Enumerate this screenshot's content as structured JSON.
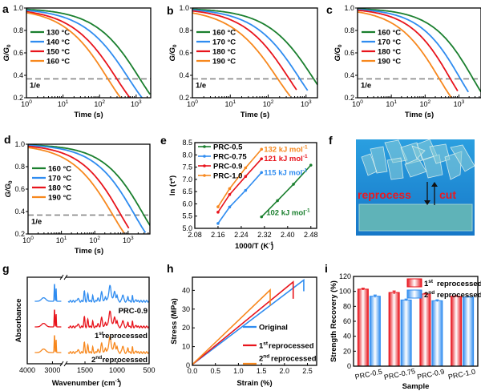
{
  "panels": {
    "a": {
      "label": "a"
    },
    "b": {
      "label": "b"
    },
    "c": {
      "label": "c"
    },
    "d": {
      "label": "d"
    },
    "e": {
      "label": "e"
    },
    "f": {
      "label": "f"
    },
    "g": {
      "label": "g"
    },
    "h": {
      "label": "h"
    },
    "i": {
      "label": "i"
    }
  },
  "colors": {
    "green": "#1a7f2e",
    "blue": "#2f8cf0",
    "red": "#e8141c",
    "orange": "#f7881e",
    "gray": "#888888"
  },
  "photo_f": {
    "reprocess": "reprocess",
    "cut": "cut"
  },
  "chart_data": [
    {
      "id": "a",
      "type": "line",
      "title": "",
      "xlabel": "Time (s)",
      "ylabel": "G/G0",
      "xscale": "log",
      "xlim": [
        1,
        2500
      ],
      "ylim": [
        0.2,
        1.0
      ],
      "xticks": [
        "10^0",
        "10^1",
        "10^2",
        "10^3"
      ],
      "yticks": [
        "0.2",
        "0.4",
        "0.6",
        "0.8",
        "1.0"
      ],
      "reference_line": {
        "y": 0.368,
        "label": "1/e"
      },
      "series": [
        {
          "name": "130 °C",
          "color": "green",
          "tau": 1200,
          "beta": 0.62,
          "xend": 2400
        },
        {
          "name": "140 °C",
          "color": "blue",
          "tau": 600,
          "beta": 0.6,
          "xend": 1900
        },
        {
          "name": "150 °C",
          "color": "red",
          "tau": 280,
          "beta": 0.6,
          "xend": 1100
        },
        {
          "name": "160 °C",
          "color": "orange",
          "tau": 160,
          "beta": 0.62,
          "xend": 520
        }
      ]
    },
    {
      "id": "b",
      "type": "line",
      "title": "",
      "xlabel": "Time (s)",
      "ylabel": "G/G0",
      "xscale": "log",
      "xlim": [
        1,
        2000
      ],
      "ylim": [
        0.2,
        1.0
      ],
      "xticks": [
        "10^0",
        "10^1",
        "10^2",
        "10^3"
      ],
      "yticks": [
        "0.2",
        "0.4",
        "0.6",
        "0.8",
        "1.0"
      ],
      "reference_line": {
        "y": 0.368,
        "label": "1/e"
      },
      "series": [
        {
          "name": "160 °C",
          "color": "green",
          "tau": 1500,
          "beta": 0.62,
          "xend": 2000
        },
        {
          "name": "170 °C",
          "color": "blue",
          "tau": 650,
          "beta": 0.62,
          "xend": 1100
        },
        {
          "name": "180 °C",
          "color": "red",
          "tau": 340,
          "beta": 0.62,
          "xend": 560
        },
        {
          "name": "190 °C",
          "color": "orange",
          "tau": 170,
          "beta": 0.6,
          "xend": 380
        }
      ]
    },
    {
      "id": "c",
      "type": "line",
      "title": "",
      "xlabel": "Time (s)",
      "ylabel": "G/G0",
      "xscale": "log",
      "xlim": [
        1,
        4500
      ],
      "ylim": [
        0.2,
        1.0
      ],
      "xticks": [
        "10^0",
        "10^1",
        "10^2",
        "10^3"
      ],
      "yticks": [
        "0.2",
        "0.4",
        "0.6",
        "0.8",
        "1.0"
      ],
      "reference_line": {
        "y": 0.368,
        "label": "1/e"
      },
      "series": [
        {
          "name": "160 °C",
          "color": "green",
          "tau": 2500,
          "beta": 0.62,
          "xend": 4500
        },
        {
          "name": "170 °C",
          "color": "blue",
          "tau": 1050,
          "beta": 0.62,
          "xend": 1900
        },
        {
          "name": "180 °C",
          "color": "red",
          "tau": 530,
          "beta": 0.62,
          "xend": 920
        },
        {
          "name": "190 °C",
          "color": "orange",
          "tau": 250,
          "beta": 0.6,
          "xend": 600
        }
      ]
    },
    {
      "id": "d",
      "type": "line",
      "title": "",
      "xlabel": "Time (s)",
      "ylabel": "G/G0",
      "xscale": "log",
      "xlim": [
        1,
        4500
      ],
      "ylim": [
        0.2,
        1.0
      ],
      "xticks": [
        "10^0",
        "10^1",
        "10^2",
        "10^3"
      ],
      "yticks": [
        "0.2",
        "0.4",
        "0.6",
        "0.8",
        "1.0"
      ],
      "reference_line": {
        "y": 0.368,
        "label": "1/e"
      },
      "series": [
        {
          "name": "160 °C",
          "color": "green",
          "tau": 2800,
          "beta": 0.62,
          "xend": 4500
        },
        {
          "name": "170 °C",
          "color": "blue",
          "tau": 1500,
          "beta": 0.62,
          "xend": 3300
        },
        {
          "name": "180 °C",
          "color": "red",
          "tau": 580,
          "beta": 0.62,
          "xend": 1050
        },
        {
          "name": "190 °C",
          "color": "orange",
          "tau": 330,
          "beta": 0.6,
          "xend": 750
        }
      ]
    },
    {
      "id": "e",
      "type": "scatter",
      "title": "",
      "xlabel": "1000/T (K-1)",
      "ylabel": "ln (τ*)",
      "xlim": [
        2.08,
        2.5
      ],
      "ylim": [
        5.0,
        8.5
      ],
      "xticks": [
        "2.08",
        "2.16",
        "2.24",
        "2.32",
        "2.40",
        "2.48"
      ],
      "yticks": [
        "5.0",
        "5.5",
        "6.0",
        "6.5",
        "7.0",
        "7.5",
        "8.0",
        "8.5"
      ],
      "series": [
        {
          "name": "PRC-0.5",
          "color": "green",
          "annotation": "102 kJ mol-1",
          "x": [
            2.31,
            2.365,
            2.42,
            2.48
          ],
          "y": [
            5.47,
            6.13,
            6.8,
            7.58
          ]
        },
        {
          "name": "PRC-0.75",
          "color": "blue",
          "annotation": "115 kJ mol-1",
          "x": [
            2.16,
            2.2,
            2.255,
            2.31
          ],
          "y": [
            5.2,
            5.87,
            6.55,
            7.28
          ]
        },
        {
          "name": "PRC-0.9",
          "color": "red",
          "annotation": "121 kJ mol-1",
          "x": [
            2.16,
            2.2,
            2.255,
            2.31
          ],
          "y": [
            5.66,
            6.38,
            7.12,
            7.84
          ]
        },
        {
          "name": "PRC-1.0",
          "color": "orange",
          "annotation": "132 kJ mol-1",
          "x": [
            2.16,
            2.2,
            2.255,
            2.31
          ],
          "y": [
            5.88,
            6.62,
            7.47,
            8.23
          ]
        }
      ]
    },
    {
      "id": "g",
      "type": "line",
      "title": "",
      "xlabel": "Wavenumber (cm-1)",
      "ylabel": "Absorbance",
      "xticks": [
        "4000",
        "3000",
        "1500",
        "1000",
        "500"
      ],
      "series": [
        {
          "name": "PRC-0.9",
          "color": "blue"
        },
        {
          "name": "1st reprocessed",
          "color": "red"
        },
        {
          "name": "2nd reprocessed",
          "color": "orange"
        }
      ]
    },
    {
      "id": "h",
      "type": "line",
      "title": "",
      "xlabel": "Strain (%)",
      "ylabel": "Stress (MPa)",
      "xlim": [
        0,
        2.7
      ],
      "ylim": [
        0,
        47
      ],
      "xticks": [
        "0.0",
        "0.5",
        "1.0",
        "1.5",
        "2.0",
        "2.5"
      ],
      "yticks": [
        "0",
        "10",
        "20",
        "30",
        "40"
      ],
      "series": [
        {
          "name": "Original",
          "color": "blue",
          "break_strain": 2.42,
          "break_stress": 45.5,
          "drop_to": 39.5
        },
        {
          "name": "1st reprocessed",
          "color": "red",
          "break_strain": 2.19,
          "break_stress": 44.5,
          "drop_to": 35.5
        },
        {
          "name": "2nd reprocessed",
          "color": "orange",
          "break_strain": 1.69,
          "break_stress": 40.2,
          "drop_to": 32.0
        }
      ]
    },
    {
      "id": "i",
      "type": "bar",
      "title": "",
      "xlabel": "Sample",
      "ylabel": "Strength Recovery (%)",
      "ylim": [
        0,
        120
      ],
      "categories": [
        "PRC-0.5",
        "PRC-0.75",
        "PRC-0.9",
        "PRC-1.0"
      ],
      "yticks": [
        "0",
        "20",
        "40",
        "60",
        "80",
        "100",
        "120"
      ],
      "series": [
        {
          "name": "1st reprocessed",
          "color": "red",
          "values": [
            103,
            98.5,
            96.5,
            93.5
          ],
          "errors": [
            1.2,
            2,
            0.8,
            0.6
          ]
        },
        {
          "name": "2nd reprocessed",
          "color": "blue",
          "values": [
            93.5,
            88.5,
            87.5,
            92.5
          ],
          "errors": [
            1.6,
            1.2,
            1.2,
            0.6
          ]
        }
      ]
    }
  ]
}
